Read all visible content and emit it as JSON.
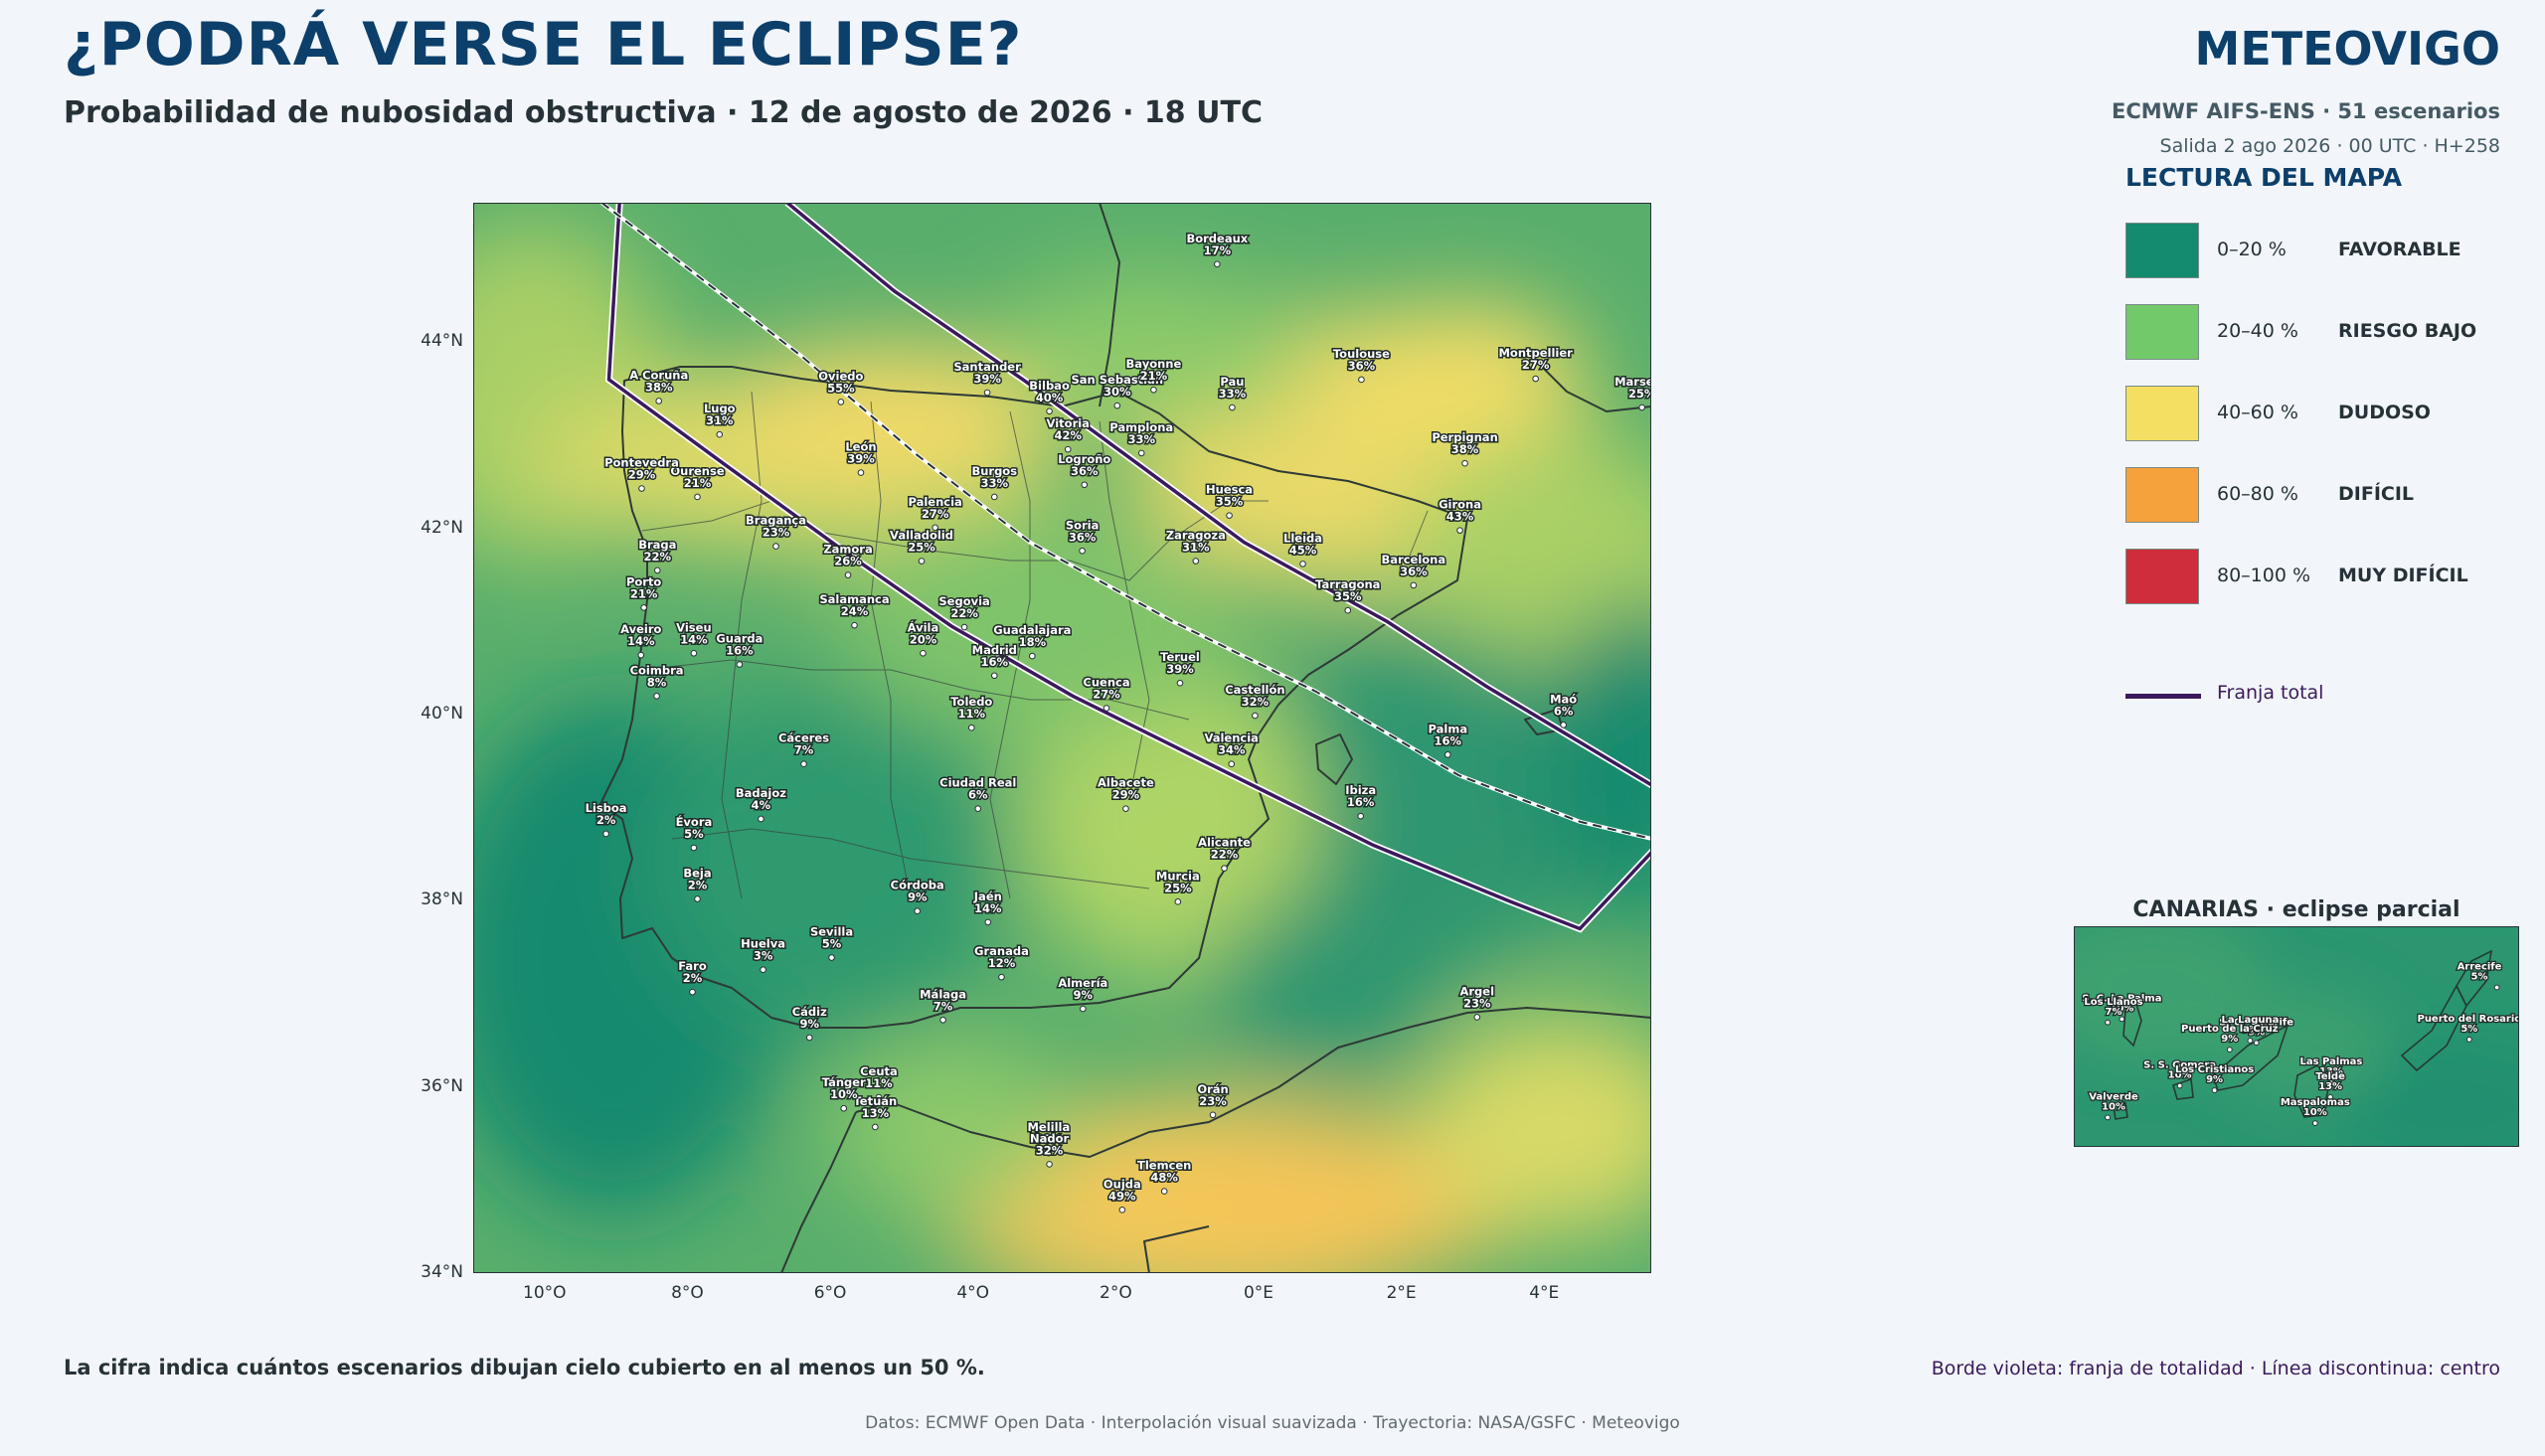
{
  "header": {
    "title": "¿PODRÁ VERSE EL ECLIPSE?",
    "subtitle": "Probabilidad de nubosidad obstructiva · 12 de agosto de 2026 · 18 UTC",
    "brand": "METEOVIGO",
    "model": "ECMWF AIFS-ENS · 51 escenarios",
    "run": "Salida 2 ago 2026 · 00 UTC · H+258"
  },
  "legend": {
    "title": "LECTURA DEL MAPA",
    "items": [
      {
        "range": "0–20 %",
        "label": "FAVORABLE",
        "color": "#148a6e"
      },
      {
        "range": "20–40 %",
        "label": "RIESGO BAJO",
        "color": "#72c96a"
      },
      {
        "range": "40–60 %",
        "label": "DUDOSO",
        "color": "#f4df63"
      },
      {
        "range": "60–80 %",
        "label": "DIFÍCIL",
        "color": "#f4a23c"
      },
      {
        "range": "80–100 %",
        "label": "MUY DIFÍCIL",
        "color": "#cf2d3c"
      }
    ],
    "line_label": "Franja total",
    "line_color": "#3b1a5c"
  },
  "map": {
    "lon_range": [
      -11,
      5.5
    ],
    "lat_range": [
      34,
      45.5
    ],
    "lat_ticks": [
      {
        "v": 44,
        "label": "44°N"
      },
      {
        "v": 42,
        "label": "42°N"
      },
      {
        "v": 40,
        "label": "40°N"
      },
      {
        "v": 38,
        "label": "38°N"
      },
      {
        "v": 36,
        "label": "36°N"
      },
      {
        "v": 34,
        "label": "34°N"
      }
    ],
    "lon_ticks": [
      {
        "v": -10,
        "label": "10°O"
      },
      {
        "v": -8,
        "label": "8°O"
      },
      {
        "v": -6,
        "label": "6°O"
      },
      {
        "v": -4,
        "label": "4°O"
      },
      {
        "v": -2,
        "label": "2°O"
      },
      {
        "v": 0,
        "label": "0°E"
      },
      {
        "v": 2,
        "label": "2°E"
      },
      {
        "v": 4,
        "label": "4°E"
      }
    ],
    "cities": [
      {
        "name": "A Coruña",
        "p": "38%",
        "lon": -8.4,
        "lat": 43.37
      },
      {
        "name": "Lugo",
        "p": "31%",
        "lon": -7.55,
        "lat": 43.01
      },
      {
        "name": "Oviedo",
        "p": "55%",
        "lon": -5.85,
        "lat": 43.36
      },
      {
        "name": "Santander",
        "p": "39%",
        "lon": -3.8,
        "lat": 43.46
      },
      {
        "name": "Bilbao",
        "p": "40%",
        "lon": -2.93,
        "lat": 43.26
      },
      {
        "name": "San Sebastián",
        "p": "30%",
        "lon": -1.98,
        "lat": 43.32
      },
      {
        "name": "Vitoria",
        "p": "42%",
        "lon": -2.67,
        "lat": 42.85
      },
      {
        "name": "Pamplona",
        "p": "33%",
        "lon": -1.64,
        "lat": 42.81
      },
      {
        "name": "Logroño",
        "p": "36%",
        "lon": -2.44,
        "lat": 42.47
      },
      {
        "name": "Burgos",
        "p": "33%",
        "lon": -3.7,
        "lat": 42.34
      },
      {
        "name": "León",
        "p": "39%",
        "lon": -5.57,
        "lat": 42.6
      },
      {
        "name": "Ourense",
        "p": "21%",
        "lon": -7.86,
        "lat": 42.34
      },
      {
        "name": "Pontevedra",
        "p": "29%",
        "lon": -8.64,
        "lat": 42.43
      },
      {
        "name": "Palencia",
        "p": "27%",
        "lon": -4.53,
        "lat": 42.01
      },
      {
        "name": "Valladolid",
        "p": "25%",
        "lon": -4.72,
        "lat": 41.65
      },
      {
        "name": "Zamora",
        "p": "26%",
        "lon": -5.75,
        "lat": 41.5
      },
      {
        "name": "Bragança",
        "p": "23%",
        "lon": -6.76,
        "lat": 41.81
      },
      {
        "name": "Braga",
        "p": "22%",
        "lon": -8.42,
        "lat": 41.55
      },
      {
        "name": "Porto",
        "p": "21%",
        "lon": -8.61,
        "lat": 41.15
      },
      {
        "name": "Soria",
        "p": "36%",
        "lon": -2.47,
        "lat": 41.76
      },
      {
        "name": "Zaragoza",
        "p": "31%",
        "lon": -0.88,
        "lat": 41.65
      },
      {
        "name": "Huesca",
        "p": "35%",
        "lon": -0.41,
        "lat": 42.14
      },
      {
        "name": "Lleida",
        "p": "45%",
        "lon": 0.62,
        "lat": 41.62
      },
      {
        "name": "Girona",
        "p": "43%",
        "lon": 2.82,
        "lat": 41.98
      },
      {
        "name": "Barcelona",
        "p": "36%",
        "lon": 2.17,
        "lat": 41.39
      },
      {
        "name": "Tarragona",
        "p": "35%",
        "lon": 1.25,
        "lat": 41.12
      },
      {
        "name": "Segovia",
        "p": "22%",
        "lon": -4.12,
        "lat": 40.94
      },
      {
        "name": "Salamanca",
        "p": "24%",
        "lon": -5.66,
        "lat": 40.96
      },
      {
        "name": "Viseu",
        "p": "14%",
        "lon": -7.91,
        "lat": 40.66
      },
      {
        "name": "Aveiro",
        "p": "14%",
        "lon": -8.65,
        "lat": 40.64
      },
      {
        "name": "Guarda",
        "p": "16%",
        "lon": -7.27,
        "lat": 40.54
      },
      {
        "name": "Coimbra",
        "p": "8%",
        "lon": -8.43,
        "lat": 40.2
      },
      {
        "name": "Ávila",
        "p": "20%",
        "lon": -4.7,
        "lat": 40.66
      },
      {
        "name": "Guadalajara",
        "p": "18%",
        "lon": -3.17,
        "lat": 40.63
      },
      {
        "name": "Madrid",
        "p": "16%",
        "lon": -3.7,
        "lat": 40.42
      },
      {
        "name": "Cuenca",
        "p": "27%",
        "lon": -2.13,
        "lat": 40.07
      },
      {
        "name": "Teruel",
        "p": "39%",
        "lon": -1.1,
        "lat": 40.34
      },
      {
        "name": "Castellón",
        "p": "32%",
        "lon": -0.05,
        "lat": 39.99
      },
      {
        "name": "Toledo",
        "p": "11%",
        "lon": -4.02,
        "lat": 39.86
      },
      {
        "name": "Cáceres",
        "p": "7%",
        "lon": -6.37,
        "lat": 39.47
      },
      {
        "name": "Valencia",
        "p": "34%",
        "lon": -0.38,
        "lat": 39.47
      },
      {
        "name": "Albacete",
        "p": "29%",
        "lon": -1.86,
        "lat": 38.99
      },
      {
        "name": "Ciudad Real",
        "p": "6%",
        "lon": -3.93,
        "lat": 38.99
      },
      {
        "name": "Badajoz",
        "p": "4%",
        "lon": -6.97,
        "lat": 38.88
      },
      {
        "name": "Lisboa",
        "p": "2%",
        "lon": -9.14,
        "lat": 38.72
      },
      {
        "name": "Évora",
        "p": "5%",
        "lon": -7.91,
        "lat": 38.57
      },
      {
        "name": "Alicante",
        "p": "22%",
        "lon": -0.48,
        "lat": 38.35
      },
      {
        "name": "Murcia",
        "p": "25%",
        "lon": -1.13,
        "lat": 37.99
      },
      {
        "name": "Beja",
        "p": "2%",
        "lon": -7.86,
        "lat": 38.02
      },
      {
        "name": "Córdoba",
        "p": "9%",
        "lon": -4.78,
        "lat": 37.89
      },
      {
        "name": "Jaén",
        "p": "14%",
        "lon": -3.79,
        "lat": 37.77
      },
      {
        "name": "Sevilla",
        "p": "5%",
        "lon": -5.98,
        "lat": 37.39
      },
      {
        "name": "Huelva",
        "p": "3%",
        "lon": -6.94,
        "lat": 37.26
      },
      {
        "name": "Granada",
        "p": "12%",
        "lon": -3.6,
        "lat": 37.18
      },
      {
        "name": "Faro",
        "p": "2%",
        "lon": -7.93,
        "lat": 37.02
      },
      {
        "name": "Almería",
        "p": "9%",
        "lon": -2.46,
        "lat": 36.84
      },
      {
        "name": "Málaga",
        "p": "7%",
        "lon": -4.42,
        "lat": 36.72
      },
      {
        "name": "Cádiz",
        "p": "9%",
        "lon": -6.29,
        "lat": 36.53
      },
      {
        "name": "Ceuta",
        "p": "11%",
        "lon": -5.32,
        "lat": 35.89
      },
      {
        "name": "Tetuán",
        "p": "13%",
        "lon": -5.37,
        "lat": 35.57
      },
      {
        "name": "Tánger",
        "p": "10%",
        "lon": -5.81,
        "lat": 35.77
      },
      {
        "name": "Orán",
        "p": "23%",
        "lon": -0.64,
        "lat": 35.7
      },
      {
        "name": "Melilla",
        "p": "30%",
        "lon": -2.94,
        "lat": 35.29
      },
      {
        "name": "Nador",
        "p": "32%",
        "lon": -2.93,
        "lat": 35.17
      },
      {
        "name": "Oujda",
        "p": "49%",
        "lon": -1.91,
        "lat": 34.68
      },
      {
        "name": "Tlemcen",
        "p": "48%",
        "lon": -1.32,
        "lat": 34.88
      },
      {
        "name": "Ibiza",
        "p": "16%",
        "lon": 1.43,
        "lat": 38.91
      },
      {
        "name": "Palma",
        "p": "16%",
        "lon": 2.65,
        "lat": 39.57
      },
      {
        "name": "Maó",
        "p": "6%",
        "lon": 4.27,
        "lat": 39.89
      },
      {
        "name": "Argel",
        "p": "23%",
        "lon": 3.06,
        "lat": 36.75
      },
      {
        "name": "Bordeaux",
        "p": "17%",
        "lon": -0.58,
        "lat": 44.84
      },
      {
        "name": "Bayonne",
        "p": "21%",
        "lon": -1.47,
        "lat": 43.49
      },
      {
        "name": "Pau",
        "p": "33%",
        "lon": -0.37,
        "lat": 43.3
      },
      {
        "name": "Toulouse",
        "p": "36%",
        "lon": 1.44,
        "lat": 43.6
      },
      {
        "name": "Montpellier",
        "p": "27%",
        "lon": 3.88,
        "lat": 43.61
      },
      {
        "name": "Marsella",
        "p": "25%",
        "lon": 5.37,
        "lat": 43.3
      },
      {
        "name": "Perpignan",
        "p": "38%",
        "lon": 2.89,
        "lat": 42.7
      }
    ]
  },
  "canarias": {
    "title": "CANARIAS · eclipse parcial",
    "lon_range": [
      -18.3,
      -13.3
    ],
    "lat_range": [
      27.55,
      29.5
    ],
    "cities": [
      {
        "name": "Arrecife",
        "p": "5%",
        "lon": -13.55,
        "lat": 28.96
      },
      {
        "name": "Puerto del Rosario",
        "p": "5%",
        "lon": -13.86,
        "lat": 28.5
      },
      {
        "name": "S. C. La Palma",
        "p": "10%",
        "lon": -17.76,
        "lat": 28.68
      },
      {
        "name": "Los Llanos",
        "p": "7%",
        "lon": -17.92,
        "lat": 28.65
      },
      {
        "name": "S. C. Tenerife",
        "p": "9%",
        "lon": -16.25,
        "lat": 28.47
      },
      {
        "name": "La Laguna",
        "p": "9%",
        "lon": -16.32,
        "lat": 28.49
      },
      {
        "name": "Las Palmas",
        "p": "13%",
        "lon": -15.41,
        "lat": 28.12
      },
      {
        "name": "Telde",
        "p": "13%",
        "lon": -15.42,
        "lat": 27.99
      },
      {
        "name": "S. S. Gomera",
        "p": "10%",
        "lon": -17.11,
        "lat": 28.09
      },
      {
        "name": "Puerto de la Cruz",
        "p": "9%",
        "lon": -16.55,
        "lat": 28.41
      },
      {
        "name": "Valverde",
        "p": "10%",
        "lon": -17.92,
        "lat": 27.81
      },
      {
        "name": "Los Cristianos",
        "p": "9%",
        "lon": -16.72,
        "lat": 28.05
      },
      {
        "name": "Maspalomas",
        "p": "10%",
        "lon": -15.59,
        "lat": 27.76
      }
    ]
  },
  "footer": {
    "note": "La cifra indica cuántos escenarios dibujan cielo cubierto en al menos un 50 %.",
    "note_right": "Borde violeta: franja de totalidad · Línea discontinua: centro",
    "credits": "Datos: ECMWF Open Data · Interpolación visual suavizada · Trayectoria: NASA/GSFC · Meteovigo"
  }
}
